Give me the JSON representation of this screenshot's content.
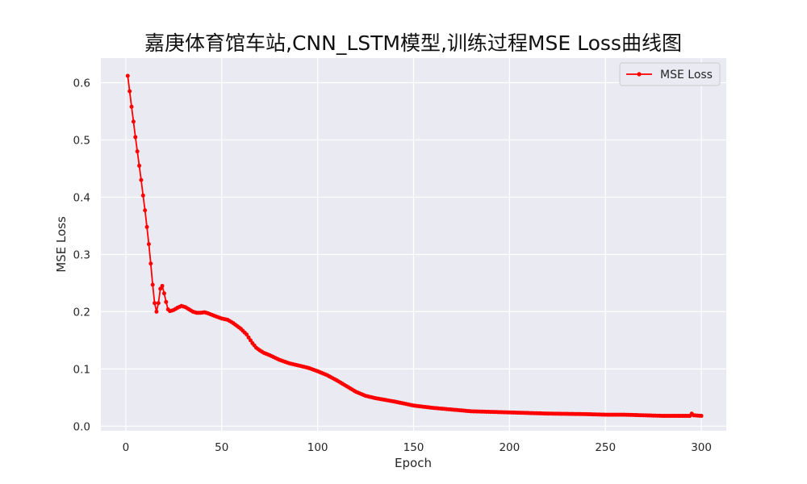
{
  "chart_data": {
    "type": "line",
    "title": "嘉庚体育馆车站,CNN_LSTM模型,训练过程MSE Loss曲线图",
    "xlabel": "Epoch",
    "ylabel": "MSE Loss",
    "xlim": [
      -13,
      313
    ],
    "ylim": [
      -0.008,
      0.643
    ],
    "xticks": [
      0,
      50,
      100,
      150,
      200,
      250,
      300
    ],
    "yticks": [
      0.0,
      0.1,
      0.2,
      0.3,
      0.4,
      0.5,
      0.6
    ],
    "xtick_labels": [
      "0",
      "50",
      "100",
      "150",
      "200",
      "250",
      "300"
    ],
    "ytick_labels": [
      "0.0",
      "0.1",
      "0.2",
      "0.3",
      "0.4",
      "0.5",
      "0.6"
    ],
    "grid": true,
    "legend_position": "top-right",
    "background": "#eaeaf2",
    "series": [
      {
        "name": "MSE Loss",
        "color": "#ff0000",
        "marker": "circle",
        "anchors": [
          [
            1,
            0.612
          ],
          [
            2,
            0.585
          ],
          [
            3,
            0.558
          ],
          [
            4,
            0.532
          ],
          [
            5,
            0.505
          ],
          [
            6,
            0.48
          ],
          [
            7,
            0.455
          ],
          [
            8,
            0.43
          ],
          [
            9,
            0.403
          ],
          [
            10,
            0.377
          ],
          [
            11,
            0.348
          ],
          [
            12,
            0.318
          ],
          [
            13,
            0.284
          ],
          [
            14,
            0.247
          ],
          [
            15,
            0.215
          ],
          [
            16,
            0.2
          ],
          [
            17,
            0.215
          ],
          [
            18,
            0.24
          ],
          [
            19,
            0.245
          ],
          [
            20,
            0.232
          ],
          [
            21,
            0.217
          ],
          [
            22,
            0.204
          ],
          [
            23,
            0.201
          ],
          [
            25,
            0.203
          ],
          [
            27,
            0.207
          ],
          [
            29,
            0.21
          ],
          [
            31,
            0.208
          ],
          [
            33,
            0.204
          ],
          [
            35,
            0.2
          ],
          [
            37,
            0.198
          ],
          [
            39,
            0.198
          ],
          [
            41,
            0.199
          ],
          [
            43,
            0.197
          ],
          [
            46,
            0.193
          ],
          [
            50,
            0.188
          ],
          [
            53,
            0.186
          ],
          [
            56,
            0.18
          ],
          [
            60,
            0.17
          ],
          [
            63,
            0.16
          ],
          [
            66,
            0.145
          ],
          [
            68,
            0.137
          ],
          [
            70,
            0.132
          ],
          [
            72,
            0.128
          ],
          [
            75,
            0.124
          ],
          [
            80,
            0.116
          ],
          [
            85,
            0.11
          ],
          [
            90,
            0.106
          ],
          [
            95,
            0.102
          ],
          [
            100,
            0.096
          ],
          [
            105,
            0.089
          ],
          [
            110,
            0.08
          ],
          [
            115,
            0.07
          ],
          [
            120,
            0.06
          ],
          [
            125,
            0.053
          ],
          [
            130,
            0.049
          ],
          [
            140,
            0.043
          ],
          [
            150,
            0.036
          ],
          [
            160,
            0.032
          ],
          [
            170,
            0.029
          ],
          [
            180,
            0.026
          ],
          [
            190,
            0.025
          ],
          [
            200,
            0.024
          ],
          [
            220,
            0.022
          ],
          [
            240,
            0.021
          ],
          [
            250,
            0.02
          ],
          [
            260,
            0.02
          ],
          [
            270,
            0.019
          ],
          [
            280,
            0.018
          ],
          [
            290,
            0.018
          ],
          [
            294,
            0.018
          ],
          [
            295,
            0.022
          ],
          [
            296,
            0.019
          ],
          [
            300,
            0.018
          ]
        ]
      }
    ]
  }
}
